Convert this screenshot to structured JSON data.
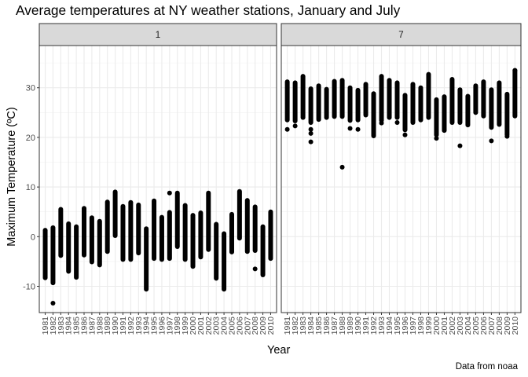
{
  "chart_data": {
    "type": "scatter",
    "title": "Average temperatures at NY weather stations, January and July",
    "xlabel": "Year",
    "ylabel": "Maximum Temperature (ºC)",
    "caption": "Data from noaa",
    "ylim": [
      -15.3,
      38.5
    ],
    "yticks": [
      -10,
      0,
      10,
      20,
      30
    ],
    "ytick_labels": [
      "-10",
      "0",
      "10",
      "20",
      "30"
    ],
    "grid": true,
    "x": [
      "1981",
      "1982",
      "1983",
      "1984",
      "1985",
      "1986",
      "1987",
      "1988",
      "1989",
      "1990",
      "1991",
      "1992",
      "1993",
      "1994",
      "1995",
      "1996",
      "1997",
      "1998",
      "1999",
      "2000",
      "2001",
      "2002",
      "2003",
      "2004",
      "2005",
      "2006",
      "2007",
      "2008",
      "2009",
      "2010"
    ],
    "panels": [
      {
        "label": "1",
        "ranges": [
          [
            -8.3,
            1.3
          ],
          [
            -9.3,
            1.8
          ],
          [
            -3.8,
            5.5
          ],
          [
            -7.0,
            2.6
          ],
          [
            -8.2,
            2.0
          ],
          [
            -3.7,
            5.7
          ],
          [
            -5.1,
            3.8
          ],
          [
            -5.7,
            3.1
          ],
          [
            -3.0,
            7.0
          ],
          [
            0.2,
            9.0
          ],
          [
            -4.6,
            6.1
          ],
          [
            -4.6,
            6.8
          ],
          [
            -3.3,
            6.4
          ],
          [
            -10.6,
            1.6
          ],
          [
            -4.4,
            7.2
          ],
          [
            -4.6,
            3.9
          ],
          [
            -4.4,
            4.9
          ],
          [
            -2.0,
            8.8
          ],
          [
            -4.6,
            6.3
          ],
          [
            -6.0,
            4.3
          ],
          [
            -4.1,
            4.8
          ],
          [
            -2.6,
            8.8
          ],
          [
            -8.4,
            2.5
          ],
          [
            -10.6,
            0.6
          ],
          [
            -3.1,
            4.5
          ],
          [
            -0.3,
            9.1
          ],
          [
            -3.0,
            7.3
          ],
          [
            -2.8,
            6.0
          ],
          [
            -7.7,
            2.0
          ],
          [
            -4.4,
            5.0
          ]
        ],
        "outliers": [
          [
            1982,
            -13.4
          ],
          [
            2008,
            -6.5
          ],
          [
            1992,
            6.9
          ],
          [
            1997,
            8.8
          ]
        ]
      },
      {
        "label": "7",
        "ranges": [
          [
            23.5,
            31.2
          ],
          [
            23.3,
            31.0
          ],
          [
            24.0,
            32.3
          ],
          [
            23.0,
            29.8
          ],
          [
            23.6,
            30.4
          ],
          [
            24.0,
            29.7
          ],
          [
            24.2,
            31.3
          ],
          [
            24.2,
            31.5
          ],
          [
            23.4,
            30.0
          ],
          [
            23.5,
            29.5
          ],
          [
            24.5,
            30.7
          ],
          [
            20.3,
            28.8
          ],
          [
            23.4,
            32.3
          ],
          [
            24.0,
            31.5
          ],
          [
            24.0,
            31.0
          ],
          [
            21.5,
            28.5
          ],
          [
            23.0,
            30.7
          ],
          [
            23.5,
            30.0
          ],
          [
            24.0,
            32.7
          ],
          [
            20.5,
            27.6
          ],
          [
            21.5,
            28.2
          ],
          [
            23.0,
            31.7
          ],
          [
            23.0,
            29.6
          ],
          [
            22.5,
            28.3
          ],
          [
            25.0,
            30.4
          ],
          [
            24.3,
            31.2
          ],
          [
            22.0,
            29.6
          ],
          [
            22.6,
            31.0
          ],
          [
            20.5,
            28.7
          ],
          [
            24.3,
            33.5
          ]
        ],
        "outliers": [
          [
            1981,
            21.6
          ],
          [
            1982,
            22.3
          ],
          [
            1984,
            21.6
          ],
          [
            1984,
            20.8
          ],
          [
            1984,
            19.1
          ],
          [
            1988,
            14.0
          ],
          [
            1989,
            21.8
          ],
          [
            1990,
            21.6
          ],
          [
            1993,
            22.9
          ],
          [
            1995,
            23.0
          ],
          [
            1996,
            20.5
          ],
          [
            2000,
            19.8
          ],
          [
            2001,
            21.4
          ],
          [
            2003,
            18.3
          ],
          [
            2007,
            19.3
          ],
          [
            2009,
            20.2
          ],
          [
            2010,
            33.5
          ]
        ]
      }
    ]
  }
}
